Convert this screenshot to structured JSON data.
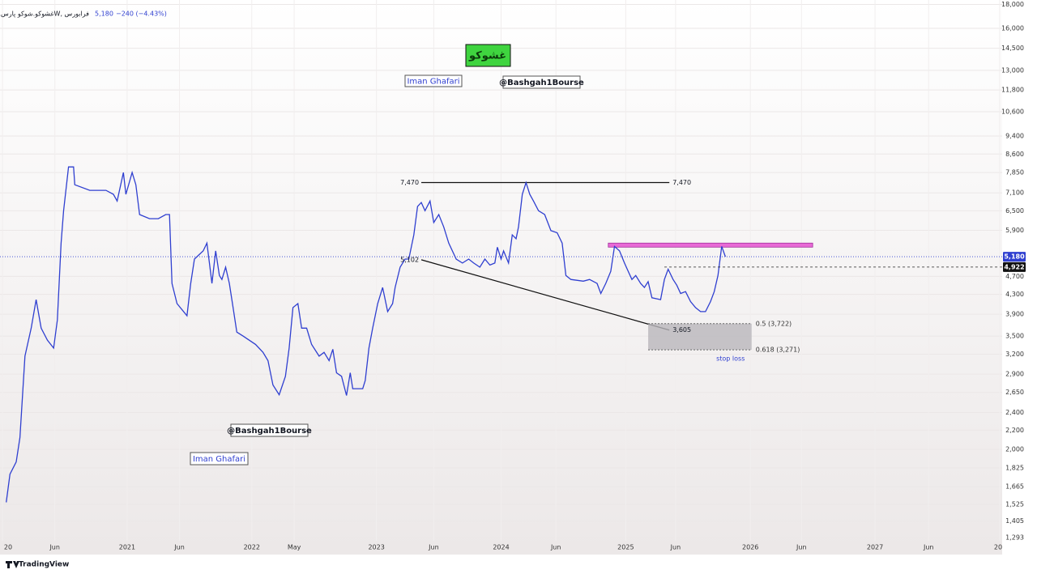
{
  "chart_data": {
    "type": "line",
    "symbol": "غشوکو.شوکو پارس, 1W, فرابورس",
    "last_price": {
      "value": 5180,
      "label": "5,180"
    },
    "change_label": "−240 (−4.43%)",
    "title": "غشوکو",
    "author": "Iman Ghafari",
    "handle": "@Bashgah1Bourse",
    "brand": "TradingView",
    "log_scale": true,
    "grid": true,
    "xlim": [
      2019.98,
      2028.02
    ],
    "ylim": [
      1190,
      18400
    ],
    "xticks": [
      {
        "value": 2020,
        "label": "20"
      },
      {
        "value": 2020.42,
        "label": "Jun"
      },
      2021,
      {
        "value": 2021.42,
        "label": "Jun"
      },
      2022,
      {
        "value": 2022.34,
        "label": "May"
      },
      2023,
      {
        "value": 2023.46,
        "label": "Jun"
      },
      2024,
      {
        "value": 2024.44,
        "label": "Jun"
      },
      2025,
      {
        "value": 2025.4,
        "label": "Jun"
      },
      2026,
      {
        "value": 2026.41,
        "label": "Jun"
      },
      2027,
      {
        "value": 2027.43,
        "label": "Jun"
      },
      {
        "value": 2028,
        "label": "20"
      }
    ],
    "yticks": [
      {
        "value": 1293,
        "label": "1,293"
      },
      {
        "value": 1405,
        "label": "1,405"
      },
      {
        "value": 1525,
        "label": "1,525"
      },
      {
        "value": 1665,
        "label": "1,665"
      },
      {
        "value": 1825,
        "label": "1,825"
      },
      {
        "value": 2000,
        "label": "2,000"
      },
      {
        "value": 2200,
        "label": "2,200"
      },
      {
        "value": 2400,
        "label": "2,400"
      },
      {
        "value": 2650,
        "label": "2,650"
      },
      {
        "value": 2900,
        "label": "2,900"
      },
      {
        "value": 3200,
        "label": "3,200"
      },
      {
        "value": 3500,
        "label": "3,500"
      },
      {
        "value": 3900,
        "label": "3,900"
      },
      {
        "value": 4300,
        "label": "4,300"
      },
      {
        "value": 4700,
        "label": "4,700"
      },
      {
        "value": 5900,
        "label": "5,900"
      },
      {
        "value": 6500,
        "label": "6,500"
      },
      {
        "value": 7100,
        "label": "7,100"
      },
      {
        "value": 7850,
        "label": "7,850"
      },
      {
        "value": 8600,
        "label": "8,600"
      },
      {
        "value": 9400,
        "label": "9,400"
      },
      {
        "value": 10600,
        "label": "10,600"
      },
      {
        "value": 11800,
        "label": "11,800"
      },
      {
        "value": 13000,
        "label": "13,000"
      },
      {
        "value": 14500,
        "label": "14,500"
      },
      {
        "value": 16000,
        "label": "16,000"
      },
      {
        "value": 18000,
        "label": "18,000"
      }
    ],
    "series": [
      {
        "color": "#2f3fd0",
        "x": [
          2020.03,
          2020.06,
          2020.11,
          2020.14,
          2020.18,
          2020.23,
          2020.27,
          2020.31,
          2020.36,
          2020.41,
          2020.44,
          2020.47,
          2020.49,
          2020.53,
          2020.57,
          2020.58,
          2020.7,
          2020.83,
          2020.89,
          2020.92,
          2020.97,
          2020.99,
          2021.04,
          2021.07,
          2021.1,
          2021.18,
          2021.25,
          2021.31,
          2021.34,
          2021.36,
          2021.4,
          2021.48,
          2021.51,
          2021.54,
          2021.61,
          2021.64,
          2021.66,
          2021.68,
          2021.71,
          2021.74,
          2021.76,
          2021.79,
          2021.82,
          2021.85,
          2021.88,
          2021.93,
          2022.03,
          2022.09,
          2022.13,
          2022.17,
          2022.22,
          2022.27,
          2022.3,
          2022.33,
          2022.37,
          2022.4,
          2022.44,
          2022.48,
          2022.54,
          2022.58,
          2022.62,
          2022.65,
          2022.68,
          2022.72,
          2022.76,
          2022.79,
          2022.81,
          2022.89,
          2022.91,
          2022.94,
          2022.97,
          2023.01,
          2023.05,
          2023.09,
          2023.13,
          2023.15,
          2023.19,
          2023.23,
          2023.26,
          2023.3,
          2023.33,
          2023.36,
          2023.39,
          2023.43,
          2023.46,
          2023.5,
          2023.54,
          2023.58,
          2023.64,
          2023.69,
          2023.74,
          2023.78,
          2023.83,
          2023.87,
          2023.91,
          2023.95,
          2023.97,
          2024.0,
          2024.02,
          2024.06,
          2024.09,
          2024.12,
          2024.14,
          2024.17,
          2024.2,
          2024.23,
          2024.26,
          2024.3,
          2024.35,
          2024.4,
          2024.45,
          2024.49,
          2024.52,
          2024.56,
          2024.66,
          2024.71,
          2024.77,
          2024.8,
          2024.84,
          2024.88,
          2024.91,
          2024.95,
          2024.99,
          2025.02,
          2025.05,
          2025.08,
          2025.12,
          2025.15,
          2025.18,
          2025.21,
          2025.28,
          2025.31,
          2025.34,
          2025.38,
          2025.41,
          2025.44,
          2025.48,
          2025.52,
          2025.56,
          2025.6,
          2025.64,
          2025.68,
          2025.71,
          2025.74,
          2025.77,
          2025.8
        ],
        "values": [
          1540,
          1770,
          1880,
          2120,
          3170,
          3640,
          4190,
          3640,
          3430,
          3300,
          3790,
          5540,
          6500,
          8070,
          8070,
          7390,
          7190,
          7190,
          7050,
          6820,
          7850,
          7050,
          7850,
          7390,
          6380,
          6250,
          6250,
          6380,
          6380,
          4540,
          4110,
          3870,
          4540,
          5120,
          5330,
          5540,
          5020,
          4540,
          5330,
          4720,
          4630,
          4920,
          4540,
          4030,
          3570,
          3500,
          3360,
          3230,
          3100,
          2750,
          2620,
          2870,
          3300,
          4030,
          4110,
          3640,
          3640,
          3360,
          3170,
          3230,
          3100,
          3280,
          2920,
          2870,
          2610,
          2920,
          2700,
          2700,
          2810,
          3300,
          3640,
          4110,
          4450,
          3950,
          4110,
          4450,
          4920,
          5120,
          5120,
          5770,
          6640,
          6770,
          6500,
          6820,
          6130,
          6380,
          6000,
          5540,
          5120,
          5020,
          5120,
          5020,
          4920,
          5120,
          4970,
          5020,
          5430,
          5120,
          5330,
          5020,
          5770,
          5660,
          6000,
          7050,
          7470,
          7050,
          6820,
          6500,
          6380,
          5890,
          5830,
          5540,
          4720,
          4630,
          4590,
          4630,
          4540,
          4320,
          4540,
          4820,
          5450,
          5330,
          5020,
          4820,
          4630,
          4720,
          4540,
          4450,
          4580,
          4230,
          4190,
          4630,
          4870,
          4630,
          4500,
          4320,
          4360,
          4150,
          4030,
          3950,
          3950,
          4150,
          4360,
          4720,
          5450,
          5180
        ]
      }
    ],
    "levels": [
      {
        "value": 7470,
        "label": "7,470",
        "x": [
          2023.36,
          2025.35
        ]
      }
    ],
    "trendline": {
      "x": [
        2023.36,
        2025.35
      ],
      "values": [
        5102,
        3605
      ],
      "value_labels": [
        "5,102",
        "3,605"
      ]
    },
    "zone": {
      "x": [
        2024.86,
        2026.5
      ],
      "values": [
        5430,
        5540
      ],
      "color": "#e86ad6"
    },
    "marker_level": {
      "value": 4922,
      "label": "4,922",
      "x0": 2025.31
    },
    "fib": {
      "x": [
        2025.18,
        2026.01
      ],
      "values": [
        3722,
        3271
      ],
      "labels": [
        "0.5 (3,722)",
        "0.618 (3,271)"
      ],
      "note": "stop loss"
    }
  }
}
